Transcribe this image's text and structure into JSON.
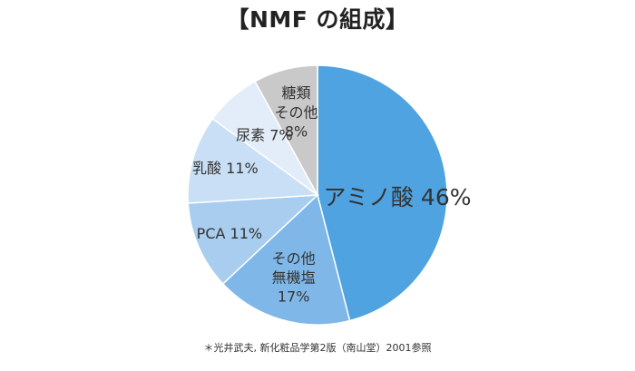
{
  "chart_data": {
    "type": "pie",
    "title": "【NMF の組成】",
    "slices": [
      {
        "label": [
          "アミノ酸 46%"
        ],
        "value": 46,
        "color": "#4fa3e0",
        "label_large": true
      },
      {
        "label": [
          "その他",
          "無機塩",
          "17%"
        ],
        "value": 17,
        "color": "#7fb8e8"
      },
      {
        "label": [
          "PCA 11%"
        ],
        "value": 11,
        "color": "#a8cdef"
      },
      {
        "label": [
          "乳酸 11%"
        ],
        "value": 11,
        "color": "#c8dff5"
      },
      {
        "label": [
          "尿素 7%"
        ],
        "value": 7,
        "color": "#e3edf9"
      },
      {
        "label": [
          "糖類",
          "その他",
          "8%"
        ],
        "value": 8,
        "color": "#c9c9c9"
      }
    ],
    "start": "12 o'clock",
    "direction": "clockwise",
    "legend": "none",
    "note": "＊光井武夫, 新化粧品学第2版（南山堂）2001参照"
  }
}
